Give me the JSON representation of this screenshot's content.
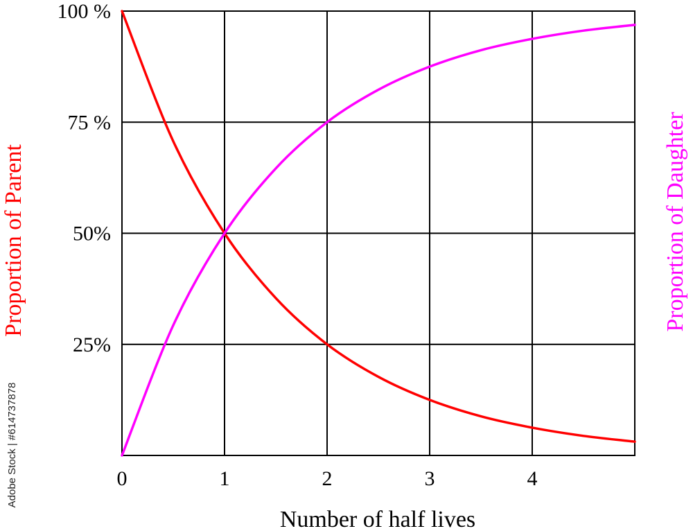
{
  "chart_data": {
    "type": "line",
    "title": "",
    "xlabel": "Number of half lives",
    "ylabel_left": "Proportion of Parent",
    "ylabel_right": "Proportion of Daughter",
    "xlim": [
      0,
      5
    ],
    "ylim": [
      0,
      100
    ],
    "x_ticks": [
      0,
      1,
      2,
      3,
      4
    ],
    "x_tick_labels": [
      "0",
      "1",
      "2",
      "3",
      "4"
    ],
    "y_ticks": [
      100,
      75,
      50,
      25
    ],
    "y_tick_labels": [
      "100 %",
      "75 %",
      "50%",
      "25%"
    ],
    "grid": true,
    "series": [
      {
        "name": "Proportion of Parent",
        "color": "#ff0000",
        "x": [
          0,
          0.5,
          1,
          1.5,
          2,
          2.5,
          3,
          3.5,
          4,
          4.5,
          5
        ],
        "y": [
          100,
          70.7,
          50,
          35.4,
          25,
          17.7,
          12.5,
          8.8,
          6.25,
          4.4,
          3.1
        ]
      },
      {
        "name": "Proportion of Daughter",
        "color": "#ff00ff",
        "x": [
          0,
          0.5,
          1,
          1.5,
          2,
          2.5,
          3,
          3.5,
          4,
          4.5,
          5
        ],
        "y": [
          0,
          29.3,
          50,
          64.6,
          75,
          82.3,
          87.5,
          91.2,
          93.75,
          95.6,
          96.9
        ]
      }
    ]
  },
  "watermark": "Adobe Stock | #614737878"
}
